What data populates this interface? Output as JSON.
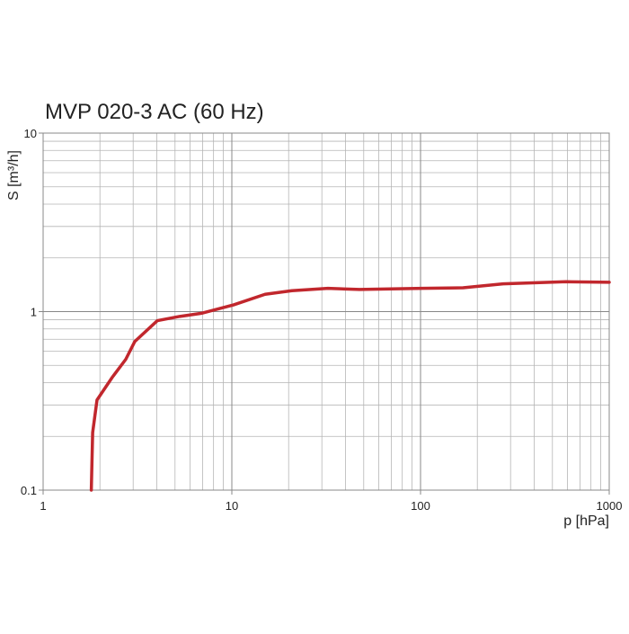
{
  "chart_data": {
    "type": "line",
    "title": "MVP 020-3 AC (60 Hz)",
    "x_label": "p [hPa]",
    "y_label": "S [m³/h]",
    "log_x": true,
    "log_y": true,
    "grid": true,
    "x": [
      1.8,
      1.83,
      1.93,
      2.33,
      2.74,
      3.06,
      4.03,
      5.3,
      6.96,
      10.2,
      15,
      20.8,
      32.3,
      47.5,
      102,
      168,
      274,
      590,
      1000
    ],
    "series": [
      {
        "name": "S",
        "color": "#c1272d",
        "values": [
          0.1,
          0.21,
          0.32,
          0.43,
          0.54,
          0.68,
          0.89,
          0.94,
          0.98,
          1.09,
          1.25,
          1.31,
          1.35,
          1.33,
          1.35,
          1.36,
          1.43,
          1.47,
          1.46
        ]
      }
    ],
    "xlim": [
      1,
      1000
    ],
    "ylim": [
      0.1,
      10
    ],
    "xticks": [
      1,
      10,
      100,
      1000
    ],
    "yticks": [
      0.1,
      1,
      10
    ],
    "xminor": [
      2,
      3,
      4,
      5,
      6,
      7,
      8,
      9,
      20,
      30,
      40,
      50,
      60,
      70,
      80,
      90,
      200,
      300,
      400,
      500,
      600,
      700,
      800,
      900
    ],
    "yminor": [
      0.2,
      0.3,
      0.4,
      0.5,
      0.6,
      0.7,
      0.8,
      0.9,
      2,
      3,
      4,
      5,
      6,
      7,
      8,
      9
    ]
  }
}
